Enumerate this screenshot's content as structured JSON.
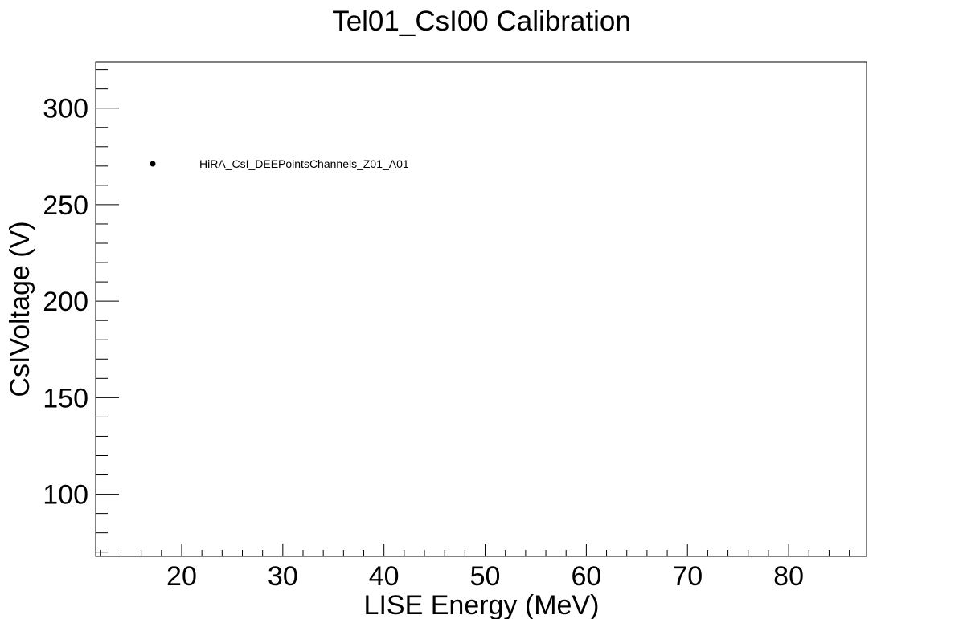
{
  "chart_data": {
    "type": "scatter",
    "title": "Tel01_CsI00 Calibration",
    "xlabel": "LISE Energy (MeV)",
    "ylabel": "CsIVoltage (V)",
    "xlim": [
      11.5,
      87.7
    ],
    "ylim": [
      67.8,
      324.0
    ],
    "x_ticks": [
      20,
      30,
      40,
      50,
      60,
      70,
      80
    ],
    "y_ticks": [
      100,
      150,
      200,
      250,
      300
    ],
    "x_minor_step": 2,
    "y_minor_step": 10,
    "grid": false,
    "legend_placement": "top-left inside plot",
    "legend": [
      {
        "label": "HiRA_CsI_DEEPointsChannels_Z01_A01",
        "marker": "filled-circle",
        "color": "#000000"
      }
    ],
    "series": []
  }
}
